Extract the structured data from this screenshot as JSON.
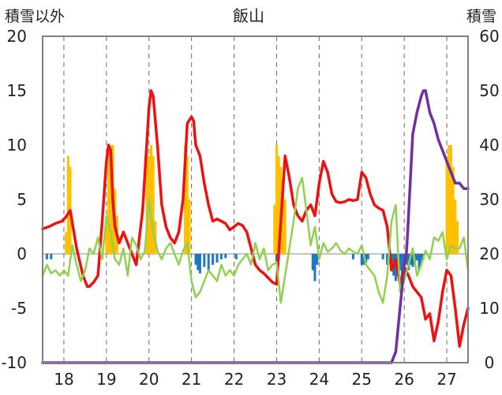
{
  "chart_data": {
    "type": "line",
    "title": "飯山",
    "y_left_label": "積雪以外",
    "y_right_label": "積雪",
    "ylim_left": [
      -10,
      20
    ],
    "ylim_right": [
      0,
      60
    ],
    "y_left_ticks": [
      "20",
      "15",
      "10",
      "5",
      "0",
      "-5",
      "-10"
    ],
    "y_right_ticks": [
      "60",
      "50",
      "40",
      "30",
      "20",
      "10",
      "0"
    ],
    "x_range": [
      17.5,
      27.5
    ],
    "x_ticks": [
      {
        "x": 18,
        "label": "18"
      },
      {
        "x": 19,
        "label": "19"
      },
      {
        "x": 20,
        "label": "20"
      },
      {
        "x": 21,
        "label": "21"
      },
      {
        "x": 22,
        "label": "22"
      },
      {
        "x": 23,
        "label": "23"
      },
      {
        "x": 24,
        "label": "24"
      },
      {
        "x": 25,
        "label": "25"
      },
      {
        "x": 26,
        "label": "26"
      },
      {
        "x": 27,
        "label": "27"
      }
    ],
    "grid_x": true,
    "colors": {
      "red": "#ee1111",
      "green": "#92d050",
      "purple": "#7030a0",
      "orange": "#ffc000",
      "blue": "#1f77c4",
      "axis": "#808080"
    },
    "series": [
      {
        "color": "red",
        "axis": "left",
        "type": "line",
        "x": [
          17.5,
          17.65,
          17.8,
          17.95,
          18.05,
          18.15,
          18.3,
          18.45,
          18.55,
          18.6,
          18.7,
          18.8,
          18.9,
          19.0,
          19.05,
          19.1,
          19.15,
          19.2,
          19.3,
          19.4,
          19.55,
          19.7,
          19.85,
          20.0,
          20.05,
          20.1,
          20.2,
          20.3,
          20.4,
          20.5,
          20.6,
          20.7,
          20.8,
          20.9,
          21.0,
          21.05,
          21.1,
          21.2,
          21.3,
          21.4,
          21.5,
          21.6,
          21.7,
          21.8,
          21.9,
          22.0,
          22.1,
          22.2,
          22.3,
          22.4,
          22.5,
          22.6,
          22.7,
          22.8,
          22.9,
          23.0,
          23.1,
          23.2,
          23.3,
          23.4,
          23.5,
          23.6,
          23.7,
          23.8,
          23.9,
          24.0,
          24.1,
          24.2,
          24.3,
          24.4,
          24.5,
          24.6,
          24.7,
          24.8,
          24.9,
          25.0,
          25.1,
          25.2,
          25.3,
          25.4,
          25.5,
          25.6,
          25.7,
          25.8,
          25.9,
          26.0,
          26.1,
          26.2,
          26.3,
          26.4,
          26.5,
          26.6,
          26.7,
          26.8,
          26.9,
          27.0,
          27.1,
          27.2,
          27.3,
          27.4,
          27.5
        ],
        "values": [
          2.3,
          2.5,
          2.8,
          3.0,
          3.4,
          4.0,
          0.5,
          -2.0,
          -3.0,
          -3.0,
          -2.6,
          -2.0,
          3.0,
          8.5,
          10.0,
          9.5,
          5.0,
          2.5,
          1.0,
          2.0,
          0.5,
          -1.0,
          4.0,
          13.5,
          15.0,
          14.5,
          10.0,
          4.5,
          2.5,
          1.5,
          1.0,
          2.0,
          5.0,
          12.0,
          12.6,
          12.2,
          10.0,
          9.0,
          6.5,
          4.5,
          3.0,
          3.2,
          3.0,
          2.8,
          2.2,
          2.5,
          2.8,
          2.6,
          2.0,
          0.5,
          -1.0,
          -1.5,
          -1.8,
          -2.2,
          -2.6,
          -2.8,
          3.0,
          9.0,
          7.0,
          4.5,
          3.5,
          3.0,
          4.0,
          4.5,
          3.5,
          6.5,
          8.5,
          7.5,
          5.5,
          4.8,
          4.7,
          4.8,
          5.0,
          4.9,
          5.0,
          7.5,
          7.0,
          5.5,
          4.5,
          4.2,
          4.0,
          2.5,
          -1.5,
          -0.5,
          -2.8,
          -1.2,
          -2.0,
          -3.0,
          -3.5,
          -4.0,
          -6.0,
          -5.5,
          -8.0,
          -6.2,
          -3.5,
          -1.5,
          -2.0,
          -5.0,
          -8.5,
          -6.5,
          -5.0
        ]
      },
      {
        "color": "green",
        "axis": "left",
        "type": "line",
        "x": [
          17.5,
          17.6,
          17.7,
          17.8,
          17.9,
          18.0,
          18.1,
          18.2,
          18.3,
          18.4,
          18.5,
          18.6,
          18.7,
          18.8,
          18.9,
          19.0,
          19.1,
          19.2,
          19.3,
          19.4,
          19.5,
          19.6,
          19.7,
          19.8,
          19.9,
          20.0,
          20.1,
          20.2,
          20.3,
          20.4,
          20.5,
          20.6,
          20.7,
          20.8,
          20.9,
          21.0,
          21.1,
          21.2,
          21.3,
          21.4,
          21.5,
          21.6,
          21.7,
          21.8,
          21.9,
          22.0,
          22.1,
          22.2,
          22.3,
          22.4,
          22.5,
          22.6,
          22.7,
          22.8,
          22.9,
          23.0,
          23.1,
          23.2,
          23.3,
          23.4,
          23.5,
          23.6,
          23.7,
          23.8,
          23.9,
          24.0,
          24.1,
          24.2,
          24.3,
          24.4,
          24.5,
          24.6,
          24.7,
          24.8,
          24.9,
          25.0,
          25.1,
          25.2,
          25.3,
          25.4,
          25.5,
          25.6,
          25.7,
          25.8,
          25.9,
          26.0,
          26.1,
          26.2,
          26.3,
          26.4,
          26.5,
          26.6,
          26.7,
          26.8,
          26.9,
          27.0,
          27.1,
          27.2,
          27.3,
          27.4,
          27.5
        ],
        "values": [
          -2.0,
          -1.0,
          -1.8,
          -1.5,
          -2.0,
          -1.5,
          -2.0,
          0.8,
          -1.0,
          -2.5,
          -1.5,
          0.5,
          0.0,
          1.5,
          -0.5,
          3.5,
          2.0,
          -0.5,
          -1.0,
          0.5,
          -2.0,
          1.5,
          0.8,
          -0.5,
          0.2,
          5.0,
          2.0,
          0.3,
          -0.5,
          0.5,
          1.0,
          0.0,
          -1.0,
          0.3,
          1.0,
          -2.5,
          -4.0,
          -3.5,
          -2.5,
          -1.5,
          -2.0,
          -2.5,
          -1.0,
          -2.0,
          -1.5,
          -2.0,
          -1.0,
          -0.5,
          0.0,
          -1.0,
          1.0,
          -0.5,
          0.5,
          -1.5,
          -1.0,
          -0.8,
          -4.5,
          -2.0,
          0.5,
          3.0,
          6.0,
          7.0,
          4.0,
          0.8,
          2.5,
          -0.5,
          1.0,
          0.2,
          0.5,
          1.0,
          0.3,
          0.0,
          0.5,
          0.2,
          0.0,
          0.8,
          -1.0,
          -1.5,
          -2.0,
          -3.5,
          -4.5,
          -2.0,
          3.0,
          4.5,
          -3.5,
          -2.5,
          -1.0,
          0.5,
          -2.0,
          -1.0,
          0.3,
          -0.5,
          1.5,
          1.2,
          2.0,
          -0.5,
          0.8,
          0.5,
          0.5,
          1.5,
          -1.5
        ]
      },
      {
        "color": "purple",
        "axis": "right",
        "type": "line",
        "x": [
          17.5,
          19.0,
          20.0,
          21.0,
          22.0,
          23.0,
          24.0,
          25.0,
          25.6,
          25.7,
          25.8,
          25.85,
          25.9,
          25.95,
          26.0,
          26.05,
          26.08,
          26.2,
          26.3,
          26.4,
          26.45,
          26.5,
          26.6,
          26.7,
          26.8,
          26.9,
          27.0,
          27.1,
          27.2,
          27.3,
          27.4,
          27.5
        ],
        "values": [
          0,
          0,
          0,
          0,
          0,
          0,
          0,
          0,
          0,
          0,
          2,
          6,
          10,
          14,
          18,
          20,
          24,
          42,
          46,
          49,
          50,
          50,
          46,
          44,
          41,
          39,
          37,
          35,
          33,
          33,
          32,
          32
        ]
      },
      {
        "color": "orange",
        "axis": "left",
        "type": "bar",
        "x": [
          18.05,
          18.1,
          18.15,
          19.0,
          19.05,
          19.1,
          19.15,
          19.2,
          19.25,
          19.95,
          20.0,
          20.05,
          20.1,
          20.15,
          20.85,
          20.9,
          20.95,
          22.95,
          23.0,
          23.05,
          23.1,
          23.15,
          23.2,
          27.0,
          27.05,
          27.1,
          27.15,
          27.2,
          27.25
        ],
        "values": [
          2.0,
          9.0,
          8.0,
          3.0,
          10.0,
          10.0,
          10.0,
          6.0,
          3.5,
          10.0,
          9.0,
          10.0,
          9.0,
          3.0,
          10.0,
          9.0,
          5.0,
          4.5,
          10.0,
          9.0,
          8.0,
          6.0,
          5.0,
          9.0,
          10.0,
          10.0,
          8.0,
          5.0,
          3.0
        ]
      },
      {
        "color": "blue",
        "axis": "left",
        "type": "bar",
        "x": [
          17.6,
          17.7,
          21.1,
          21.15,
          21.2,
          21.3,
          21.4,
          21.5,
          21.6,
          21.7,
          21.8,
          22.05,
          23.0,
          23.05,
          23.85,
          23.9,
          23.95,
          24.8,
          25.0,
          25.05,
          25.1,
          25.15,
          25.5,
          25.6,
          25.7,
          25.75,
          25.8,
          25.85,
          25.9,
          25.95,
          26.0,
          26.05,
          26.1,
          26.15,
          26.2,
          26.25,
          26.3,
          26.35,
          26.4,
          26.45
        ],
        "values": [
          -0.5,
          -0.5,
          -1.0,
          -1.5,
          -1.8,
          -1.2,
          -1.5,
          -1.0,
          -0.8,
          -0.5,
          -0.4,
          -0.5,
          -0.7,
          -0.5,
          -1.5,
          -2.5,
          -1.0,
          -0.5,
          -1.0,
          -1.0,
          -0.8,
          -0.5,
          -0.5,
          -1.0,
          -1.5,
          -2.0,
          -2.5,
          -2.0,
          -1.5,
          -2.5,
          -2.0,
          -1.0,
          -1.5,
          -1.0,
          -1.2,
          -0.8,
          -0.6,
          -1.5,
          -1.0,
          -0.5
        ]
      }
    ]
  }
}
